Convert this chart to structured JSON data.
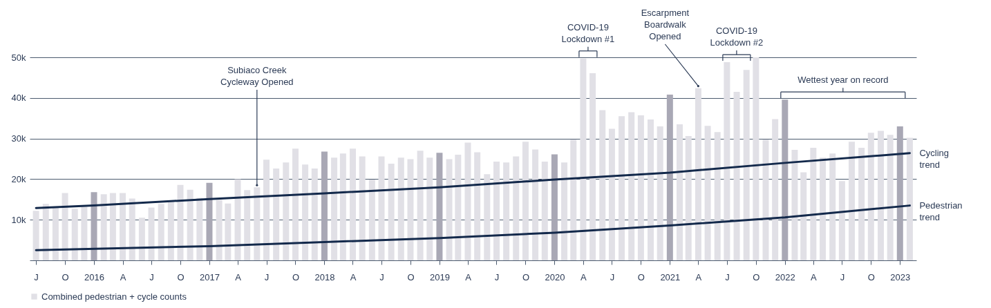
{
  "chart_data": {
    "type": "bar",
    "x": [
      "2015-07",
      "2015-08",
      "2015-09",
      "2015-10",
      "2015-11",
      "2015-12",
      "2016-01",
      "2016-02",
      "2016-03",
      "2016-04",
      "2016-05",
      "2016-06",
      "2016-07",
      "2016-08",
      "2016-09",
      "2016-10",
      "2016-11",
      "2016-12",
      "2017-01",
      "2017-02",
      "2017-03",
      "2017-04",
      "2017-05",
      "2017-06",
      "2017-07",
      "2017-08",
      "2017-09",
      "2017-10",
      "2017-11",
      "2017-12",
      "2018-01",
      "2018-02",
      "2018-03",
      "2018-04",
      "2018-05",
      "2018-06",
      "2018-07",
      "2018-08",
      "2018-09",
      "2018-10",
      "2018-11",
      "2018-12",
      "2019-01",
      "2019-02",
      "2019-03",
      "2019-04",
      "2019-05",
      "2019-06",
      "2019-07",
      "2019-08",
      "2019-09",
      "2019-10",
      "2019-11",
      "2019-12",
      "2020-01",
      "2020-02",
      "2020-03",
      "2020-04",
      "2020-05",
      "2020-06",
      "2020-07",
      "2020-08",
      "2020-09",
      "2020-10",
      "2020-11",
      "2020-12",
      "2021-01",
      "2021-02",
      "2021-03",
      "2021-04",
      "2021-05",
      "2021-06",
      "2021-07",
      "2021-08",
      "2021-09",
      "2021-10",
      "2021-11",
      "2021-12",
      "2022-01",
      "2022-02",
      "2022-03",
      "2022-04",
      "2022-05",
      "2022-06",
      "2022-07",
      "2022-08",
      "2022-09",
      "2022-10",
      "2022-11",
      "2022-12",
      "2023-01",
      "2023-02"
    ],
    "series": [
      {
        "name": "Combined pedestrian + cycle counts",
        "color": "#e1e0e6",
        "colors": [
          "#e1e0e6",
          "#e1e0e6",
          "#e1e0e6",
          "#e1e0e6",
          "#e1e0e6",
          "#e1e0e6",
          "#a9a8b5",
          "#e1e0e6",
          "#e1e0e6",
          "#e1e0e6",
          "#e1e0e6",
          "#e1e0e6",
          "#e1e0e6",
          "#e1e0e6",
          "#e1e0e6",
          "#e1e0e6",
          "#e1e0e6",
          "#e1e0e6",
          "#a9a8b5",
          "#e1e0e6",
          "#e1e0e6",
          "#e1e0e6",
          "#e1e0e6",
          "#e1e0e6",
          "#e1e0e6",
          "#e1e0e6",
          "#e1e0e6",
          "#e1e0e6",
          "#e1e0e6",
          "#e1e0e6",
          "#a9a8b5",
          "#e1e0e6",
          "#e1e0e6",
          "#e1e0e6",
          "#e1e0e6",
          "#e1e0e6",
          "#e1e0e6",
          "#e1e0e6",
          "#e1e0e6",
          "#e1e0e6",
          "#e1e0e6",
          "#e1e0e6",
          "#a9a8b5",
          "#e1e0e6",
          "#e1e0e6",
          "#e1e0e6",
          "#e1e0e6",
          "#e1e0e6",
          "#e1e0e6",
          "#e1e0e6",
          "#e1e0e6",
          "#e1e0e6",
          "#e1e0e6",
          "#e1e0e6",
          "#a9a8b5",
          "#e1e0e6",
          "#e1e0e6",
          "#e1e0e6",
          "#e1e0e6",
          "#e1e0e6",
          "#e1e0e6",
          "#e1e0e6",
          "#e1e0e6",
          "#e1e0e6",
          "#e1e0e6",
          "#e1e0e6",
          "#a9a8b5",
          "#e1e0e6",
          "#e1e0e6",
          "#e1e0e6",
          "#e1e0e6",
          "#e1e0e6",
          "#e1e0e6",
          "#e1e0e6",
          "#e1e0e6",
          "#e1e0e6",
          "#e1e0e6",
          "#e1e0e6",
          "#a9a8b5",
          "#e1e0e6",
          "#e1e0e6",
          "#e1e0e6",
          "#e1e0e6",
          "#e1e0e6",
          "#e1e0e6",
          "#e1e0e6",
          "#e1e0e6",
          "#e1e0e6",
          "#e1e0e6",
          "#e1e0e6",
          "#a9a8b5",
          "#e1e0e6"
        ],
        "values": [
          12200,
          13900,
          13000,
          16600,
          12700,
          13200,
          16800,
          16300,
          16600,
          16600,
          15200,
          10500,
          13000,
          13900,
          14400,
          18600,
          17400,
          15400,
          19100,
          14900,
          14000,
          20000,
          17300,
          18000,
          24800,
          22600,
          24100,
          27500,
          23600,
          22600,
          26800,
          25300,
          26300,
          27500,
          25600,
          19900,
          25600,
          23800,
          25300,
          24900,
          27000,
          25300,
          26500,
          24900,
          26000,
          29000,
          26600,
          21200,
          24300,
          24100,
          25600,
          29200,
          27300,
          24300,
          26100,
          24100,
          29700,
          49700,
          46100,
          37000,
          32400,
          35500,
          36500,
          35700,
          34700,
          33000,
          40800,
          33500,
          30600,
          42400,
          33100,
          31600,
          48800,
          41500,
          46900,
          50000,
          29700,
          34800,
          39600,
          27200,
          21700,
          27700,
          25300,
          26300,
          19500,
          29200,
          27700,
          31400,
          31900,
          30900,
          33000,
          30200
        ]
      },
      {
        "name": "Cycling trend",
        "type": "line",
        "color": "#13294b",
        "x": [
          "2015-07",
          "2016-01",
          "2017-01",
          "2018-01",
          "2019-01",
          "2020-01",
          "2021-01",
          "2022-01",
          "2023-02"
        ],
        "values": [
          12900,
          13500,
          15100,
          16500,
          18000,
          19900,
          21600,
          24000,
          26400
        ]
      },
      {
        "name": "Pedestrian trend",
        "type": "line",
        "color": "#13294b",
        "x": [
          "2015-07",
          "2017-01",
          "2018-01",
          "2019-01",
          "2020-01",
          "2021-01",
          "2022-01",
          "2023-02"
        ],
        "values": [
          2500,
          3500,
          4500,
          5500,
          6800,
          8600,
          10600,
          13500
        ]
      }
    ],
    "xlim": [
      "2015-06-22",
      "2023-02-11"
    ],
    "xticks": [
      {
        "value": "2015-07",
        "label": "J"
      },
      {
        "value": "2015-10",
        "label": "O"
      },
      {
        "value": "2016-01",
        "label": "2016"
      },
      {
        "value": "2016-04",
        "label": "A"
      },
      {
        "value": "2016-07",
        "label": "J"
      },
      {
        "value": "2016-10",
        "label": "O"
      },
      {
        "value": "2017-01",
        "label": "2017"
      },
      {
        "value": "2017-04",
        "label": "A"
      },
      {
        "value": "2017-07",
        "label": "J"
      },
      {
        "value": "2017-10",
        "label": "O"
      },
      {
        "value": "2018-01",
        "label": "2018"
      },
      {
        "value": "2018-04",
        "label": "A"
      },
      {
        "value": "2018-07",
        "label": "J"
      },
      {
        "value": "2018-10",
        "label": "O"
      },
      {
        "value": "2019-01",
        "label": "2019"
      },
      {
        "value": "2019-04",
        "label": "A"
      },
      {
        "value": "2019-07",
        "label": "J"
      },
      {
        "value": "2019-10",
        "label": "O"
      },
      {
        "value": "2020-01",
        "label": "2020"
      },
      {
        "value": "2020-04",
        "label": "A"
      },
      {
        "value": "2020-07",
        "label": "J"
      },
      {
        "value": "2020-10",
        "label": "O"
      },
      {
        "value": "2021-01",
        "label": "2021"
      },
      {
        "value": "2021-04",
        "label": "A"
      },
      {
        "value": "2021-07",
        "label": "J"
      },
      {
        "value": "2021-10",
        "label": "O"
      },
      {
        "value": "2022-01",
        "label": "2022"
      },
      {
        "value": "2022-04",
        "label": "A"
      },
      {
        "value": "2022-07",
        "label": "J"
      },
      {
        "value": "2022-10",
        "label": "O"
      },
      {
        "value": "2023-01",
        "label": "2023"
      }
    ],
    "ylim": [
      0,
      50000
    ],
    "yticks": [
      {
        "value": 10000,
        "label": "10k"
      },
      {
        "value": 20000,
        "label": "20k"
      },
      {
        "value": 30000,
        "label": "30k"
      },
      {
        "value": 40000,
        "label": "40k"
      },
      {
        "value": 50000,
        "label": "50k"
      }
    ],
    "grid": "y",
    "legend": "bottom left",
    "annotations": [
      {
        "text": "Subiaco Creek Cycleway Opened",
        "x": "2017-06",
        "y": 18000
      },
      {
        "text": "COVID-19 Lockdown #1",
        "x": "2020-04",
        "y": 49700
      },
      {
        "text": "Escarpment Boardwalk Opened",
        "x": "2021-04",
        "y": 42400
      },
      {
        "text": "COVID-19 Lockdown #2",
        "x": "2021-07",
        "y": 48800
      },
      {
        "text": "Wettest year on record",
        "x": "2022-01",
        "y": 39600
      }
    ]
  }
}
